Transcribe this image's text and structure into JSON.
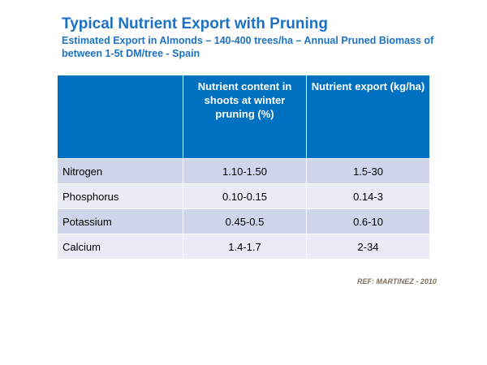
{
  "title": "Typical Nutrient Export with Pruning",
  "subtitle": "Estimated Export in Almonds – 140-400 trees/ha – Annual Pruned Biomass of between 1-5t DM/tree - Spain",
  "table": {
    "headers": [
      "",
      "Nutrient content in shoots at  winter pruning (%)",
      "Nutrient export (kg/ha)"
    ],
    "rows": [
      [
        "Nitrogen",
        "1.10-1.50",
        "1.5-30"
      ],
      [
        "Phosphorus",
        "0.10-0.15",
        "0.14-3"
      ],
      [
        "Potassium",
        "0.45-0.5",
        "0.6-10"
      ],
      [
        "Calcium",
        "1.4-1.7",
        "2-34"
      ]
    ]
  },
  "reference": "REF:  MARTINEZ - 2010"
}
